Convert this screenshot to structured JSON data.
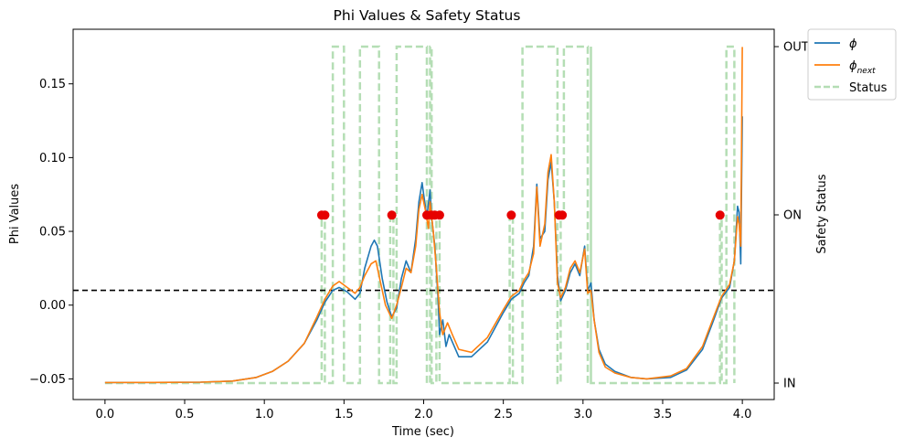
{
  "chart_data": {
    "type": "line",
    "title": "Phi Values & Safety Status",
    "xlabel": "Time (sec)",
    "ylabel": "Phi Values",
    "y2label": "Safety Status",
    "xlim": [
      -0.2,
      4.2
    ],
    "ylim": [
      -0.064,
      0.187
    ],
    "x_ticks": [
      0.0,
      0.5,
      1.0,
      1.5,
      2.0,
      2.5,
      3.0,
      3.5,
      4.0
    ],
    "x_tick_labels": [
      "0.0",
      "0.5",
      "1.0",
      "1.5",
      "2.0",
      "2.5",
      "3.0",
      "3.5",
      "4.0"
    ],
    "y_ticks": [
      -0.05,
      0.0,
      0.05,
      0.1,
      0.15
    ],
    "y_tick_labels": [
      "−0.05",
      "0.00",
      "0.05",
      "0.10",
      "0.15"
    ],
    "y2_ticks": [
      "IN",
      "ON",
      "OUT"
    ],
    "threshold": 0.01,
    "grid": false,
    "legend_placement": "outside-top-right",
    "series": [
      {
        "name": "ϕ",
        "color": "#1f77b4",
        "points": [
          [
            0.0,
            -0.0525
          ],
          [
            0.3,
            -0.0524
          ],
          [
            0.6,
            -0.0522
          ],
          [
            0.8,
            -0.0515
          ],
          [
            0.95,
            -0.049
          ],
          [
            1.05,
            -0.045
          ],
          [
            1.15,
            -0.038
          ],
          [
            1.25,
            -0.026
          ],
          [
            1.33,
            -0.01
          ],
          [
            1.38,
            0.002
          ],
          [
            1.43,
            0.01
          ],
          [
            1.47,
            0.012
          ],
          [
            1.52,
            0.009
          ],
          [
            1.57,
            0.004
          ],
          [
            1.6,
            0.008
          ],
          [
            1.63,
            0.025
          ],
          [
            1.67,
            0.04
          ],
          [
            1.69,
            0.044
          ],
          [
            1.71,
            0.04
          ],
          [
            1.74,
            0.018
          ],
          [
            1.77,
            0.002
          ],
          [
            1.8,
            -0.008
          ],
          [
            1.83,
            -0.002
          ],
          [
            1.86,
            0.018
          ],
          [
            1.89,
            0.03
          ],
          [
            1.92,
            0.022
          ],
          [
            1.95,
            0.045
          ],
          [
            1.97,
            0.07
          ],
          [
            1.99,
            0.083
          ],
          [
            2.0,
            0.075
          ],
          [
            2.02,
            0.06
          ],
          [
            2.04,
            0.078
          ],
          [
            2.05,
            0.06
          ],
          [
            2.07,
            0.04
          ],
          [
            2.09,
            0.005
          ],
          [
            2.1,
            -0.02
          ],
          [
            2.12,
            -0.01
          ],
          [
            2.14,
            -0.028
          ],
          [
            2.16,
            -0.02
          ],
          [
            2.18,
            -0.025
          ],
          [
            2.22,
            -0.035
          ],
          [
            2.3,
            -0.035
          ],
          [
            2.4,
            -0.025
          ],
          [
            2.5,
            -0.005
          ],
          [
            2.55,
            0.004
          ],
          [
            2.6,
            0.008
          ],
          [
            2.63,
            0.015
          ],
          [
            2.66,
            0.02
          ],
          [
            2.69,
            0.04
          ],
          [
            2.71,
            0.082
          ],
          [
            2.73,
            0.045
          ],
          [
            2.76,
            0.05
          ],
          [
            2.78,
            0.085
          ],
          [
            2.8,
            0.097
          ],
          [
            2.82,
            0.07
          ],
          [
            2.84,
            0.02
          ],
          [
            2.86,
            0.003
          ],
          [
            2.89,
            0.01
          ],
          [
            2.92,
            0.022
          ],
          [
            2.95,
            0.028
          ],
          [
            2.98,
            0.02
          ],
          [
            3.01,
            0.04
          ],
          [
            3.03,
            0.01
          ],
          [
            3.05,
            0.015
          ],
          [
            3.07,
            -0.01
          ],
          [
            3.1,
            -0.03
          ],
          [
            3.14,
            -0.04
          ],
          [
            3.2,
            -0.045
          ],
          [
            3.3,
            -0.049
          ],
          [
            3.4,
            -0.05
          ],
          [
            3.55,
            -0.049
          ],
          [
            3.65,
            -0.044
          ],
          [
            3.75,
            -0.03
          ],
          [
            3.82,
            -0.01
          ],
          [
            3.87,
            0.005
          ],
          [
            3.92,
            0.012
          ],
          [
            3.95,
            0.03
          ],
          [
            3.97,
            0.067
          ],
          [
            3.98,
            0.063
          ],
          [
            3.99,
            0.028
          ],
          [
            4.0,
            0.128
          ]
        ]
      },
      {
        "name": "ϕnext",
        "color": "#ff7f0e",
        "points": [
          [
            0.0,
            -0.0525
          ],
          [
            0.3,
            -0.0524
          ],
          [
            0.6,
            -0.0522
          ],
          [
            0.8,
            -0.0515
          ],
          [
            0.95,
            -0.049
          ],
          [
            1.05,
            -0.045
          ],
          [
            1.15,
            -0.038
          ],
          [
            1.25,
            -0.026
          ],
          [
            1.33,
            -0.008
          ],
          [
            1.38,
            0.004
          ],
          [
            1.43,
            0.013
          ],
          [
            1.47,
            0.016
          ],
          [
            1.52,
            0.012
          ],
          [
            1.57,
            0.008
          ],
          [
            1.6,
            0.012
          ],
          [
            1.63,
            0.02
          ],
          [
            1.67,
            0.028
          ],
          [
            1.7,
            0.03
          ],
          [
            1.73,
            0.015
          ],
          [
            1.76,
            0.0
          ],
          [
            1.8,
            -0.009
          ],
          [
            1.83,
            0.0
          ],
          [
            1.86,
            0.012
          ],
          [
            1.89,
            0.025
          ],
          [
            1.92,
            0.022
          ],
          [
            1.95,
            0.04
          ],
          [
            1.97,
            0.065
          ],
          [
            1.99,
            0.075
          ],
          [
            2.01,
            0.065
          ],
          [
            2.03,
            0.052
          ],
          [
            2.04,
            0.07
          ],
          [
            2.06,
            0.05
          ],
          [
            2.08,
            0.025
          ],
          [
            2.1,
            -0.005
          ],
          [
            2.12,
            -0.02
          ],
          [
            2.15,
            -0.012
          ],
          [
            2.18,
            -0.02
          ],
          [
            2.22,
            -0.03
          ],
          [
            2.3,
            -0.032
          ],
          [
            2.4,
            -0.022
          ],
          [
            2.5,
            -0.003
          ],
          [
            2.55,
            0.006
          ],
          [
            2.6,
            0.01
          ],
          [
            2.63,
            0.017
          ],
          [
            2.66,
            0.022
          ],
          [
            2.69,
            0.035
          ],
          [
            2.71,
            0.08
          ],
          [
            2.73,
            0.04
          ],
          [
            2.76,
            0.055
          ],
          [
            2.78,
            0.09
          ],
          [
            2.8,
            0.102
          ],
          [
            2.82,
            0.07
          ],
          [
            2.84,
            0.015
          ],
          [
            2.86,
            0.005
          ],
          [
            2.89,
            0.012
          ],
          [
            2.92,
            0.025
          ],
          [
            2.95,
            0.03
          ],
          [
            2.98,
            0.022
          ],
          [
            3.01,
            0.038
          ],
          [
            3.03,
            0.008
          ],
          [
            3.05,
            0.01
          ],
          [
            3.07,
            -0.01
          ],
          [
            3.1,
            -0.032
          ],
          [
            3.14,
            -0.042
          ],
          [
            3.2,
            -0.046
          ],
          [
            3.3,
            -0.049
          ],
          [
            3.4,
            -0.05
          ],
          [
            3.55,
            -0.048
          ],
          [
            3.65,
            -0.043
          ],
          [
            3.75,
            -0.028
          ],
          [
            3.82,
            -0.008
          ],
          [
            3.87,
            0.006
          ],
          [
            3.92,
            0.014
          ],
          [
            3.95,
            0.03
          ],
          [
            3.97,
            0.06
          ],
          [
            3.98,
            0.055
          ],
          [
            3.99,
            0.04
          ],
          [
            4.0,
            0.175
          ]
        ]
      },
      {
        "name": "Status",
        "color": "#2ca02c",
        "dashed": true,
        "levels": {
          "IN": 0,
          "ON": 1,
          "OUT": 2
        },
        "points": [
          [
            0.0,
            0
          ],
          [
            1.36,
            0
          ],
          [
            1.36,
            1
          ],
          [
            1.38,
            1
          ],
          [
            1.38,
            0
          ],
          [
            1.43,
            0
          ],
          [
            1.43,
            2
          ],
          [
            1.5,
            2
          ],
          [
            1.5,
            0
          ],
          [
            1.6,
            0
          ],
          [
            1.6,
            2
          ],
          [
            1.72,
            2
          ],
          [
            1.72,
            0
          ],
          [
            1.79,
            0
          ],
          [
            1.79,
            1
          ],
          [
            1.81,
            1
          ],
          [
            1.81,
            0
          ],
          [
            1.83,
            0
          ],
          [
            1.83,
            2
          ],
          [
            2.02,
            2
          ],
          [
            2.02,
            0
          ],
          [
            2.04,
            0
          ],
          [
            2.04,
            2
          ],
          [
            2.05,
            2
          ],
          [
            2.05,
            0
          ],
          [
            2.08,
            0
          ],
          [
            2.08,
            1
          ],
          [
            2.1,
            1
          ],
          [
            2.1,
            0
          ],
          [
            2.54,
            0
          ],
          [
            2.54,
            1
          ],
          [
            2.56,
            1
          ],
          [
            2.56,
            0
          ],
          [
            2.62,
            0
          ],
          [
            2.62,
            2
          ],
          [
            2.84,
            2
          ],
          [
            2.84,
            0
          ],
          [
            2.86,
            0
          ],
          [
            2.86,
            1
          ],
          [
            2.88,
            1
          ],
          [
            2.88,
            2
          ],
          [
            3.03,
            2
          ],
          [
            3.03,
            0
          ],
          [
            3.05,
            0
          ],
          [
            3.05,
            2
          ],
          [
            3.05,
            0
          ],
          [
            3.86,
            0
          ],
          [
            3.86,
            1
          ],
          [
            3.87,
            1
          ],
          [
            3.87,
            0
          ],
          [
            3.9,
            0
          ],
          [
            3.9,
            2
          ],
          [
            3.95,
            2
          ],
          [
            3.95,
            0
          ]
        ]
      }
    ],
    "markers": {
      "color": "#e60000",
      "y": 0.061,
      "x": [
        1.36,
        1.38,
        1.8,
        2.02,
        2.05,
        2.07,
        2.1,
        2.55,
        2.85,
        2.87,
        3.86
      ]
    },
    "legend": [
      {
        "label": "ϕ",
        "sub": "",
        "color": "#1f77b4",
        "dashed": false
      },
      {
        "label": "ϕ",
        "sub": "next",
        "color": "#ff7f0e",
        "dashed": false
      },
      {
        "label": "Status",
        "sub": "",
        "color": "#2ca02c",
        "dashed": true
      }
    ]
  }
}
